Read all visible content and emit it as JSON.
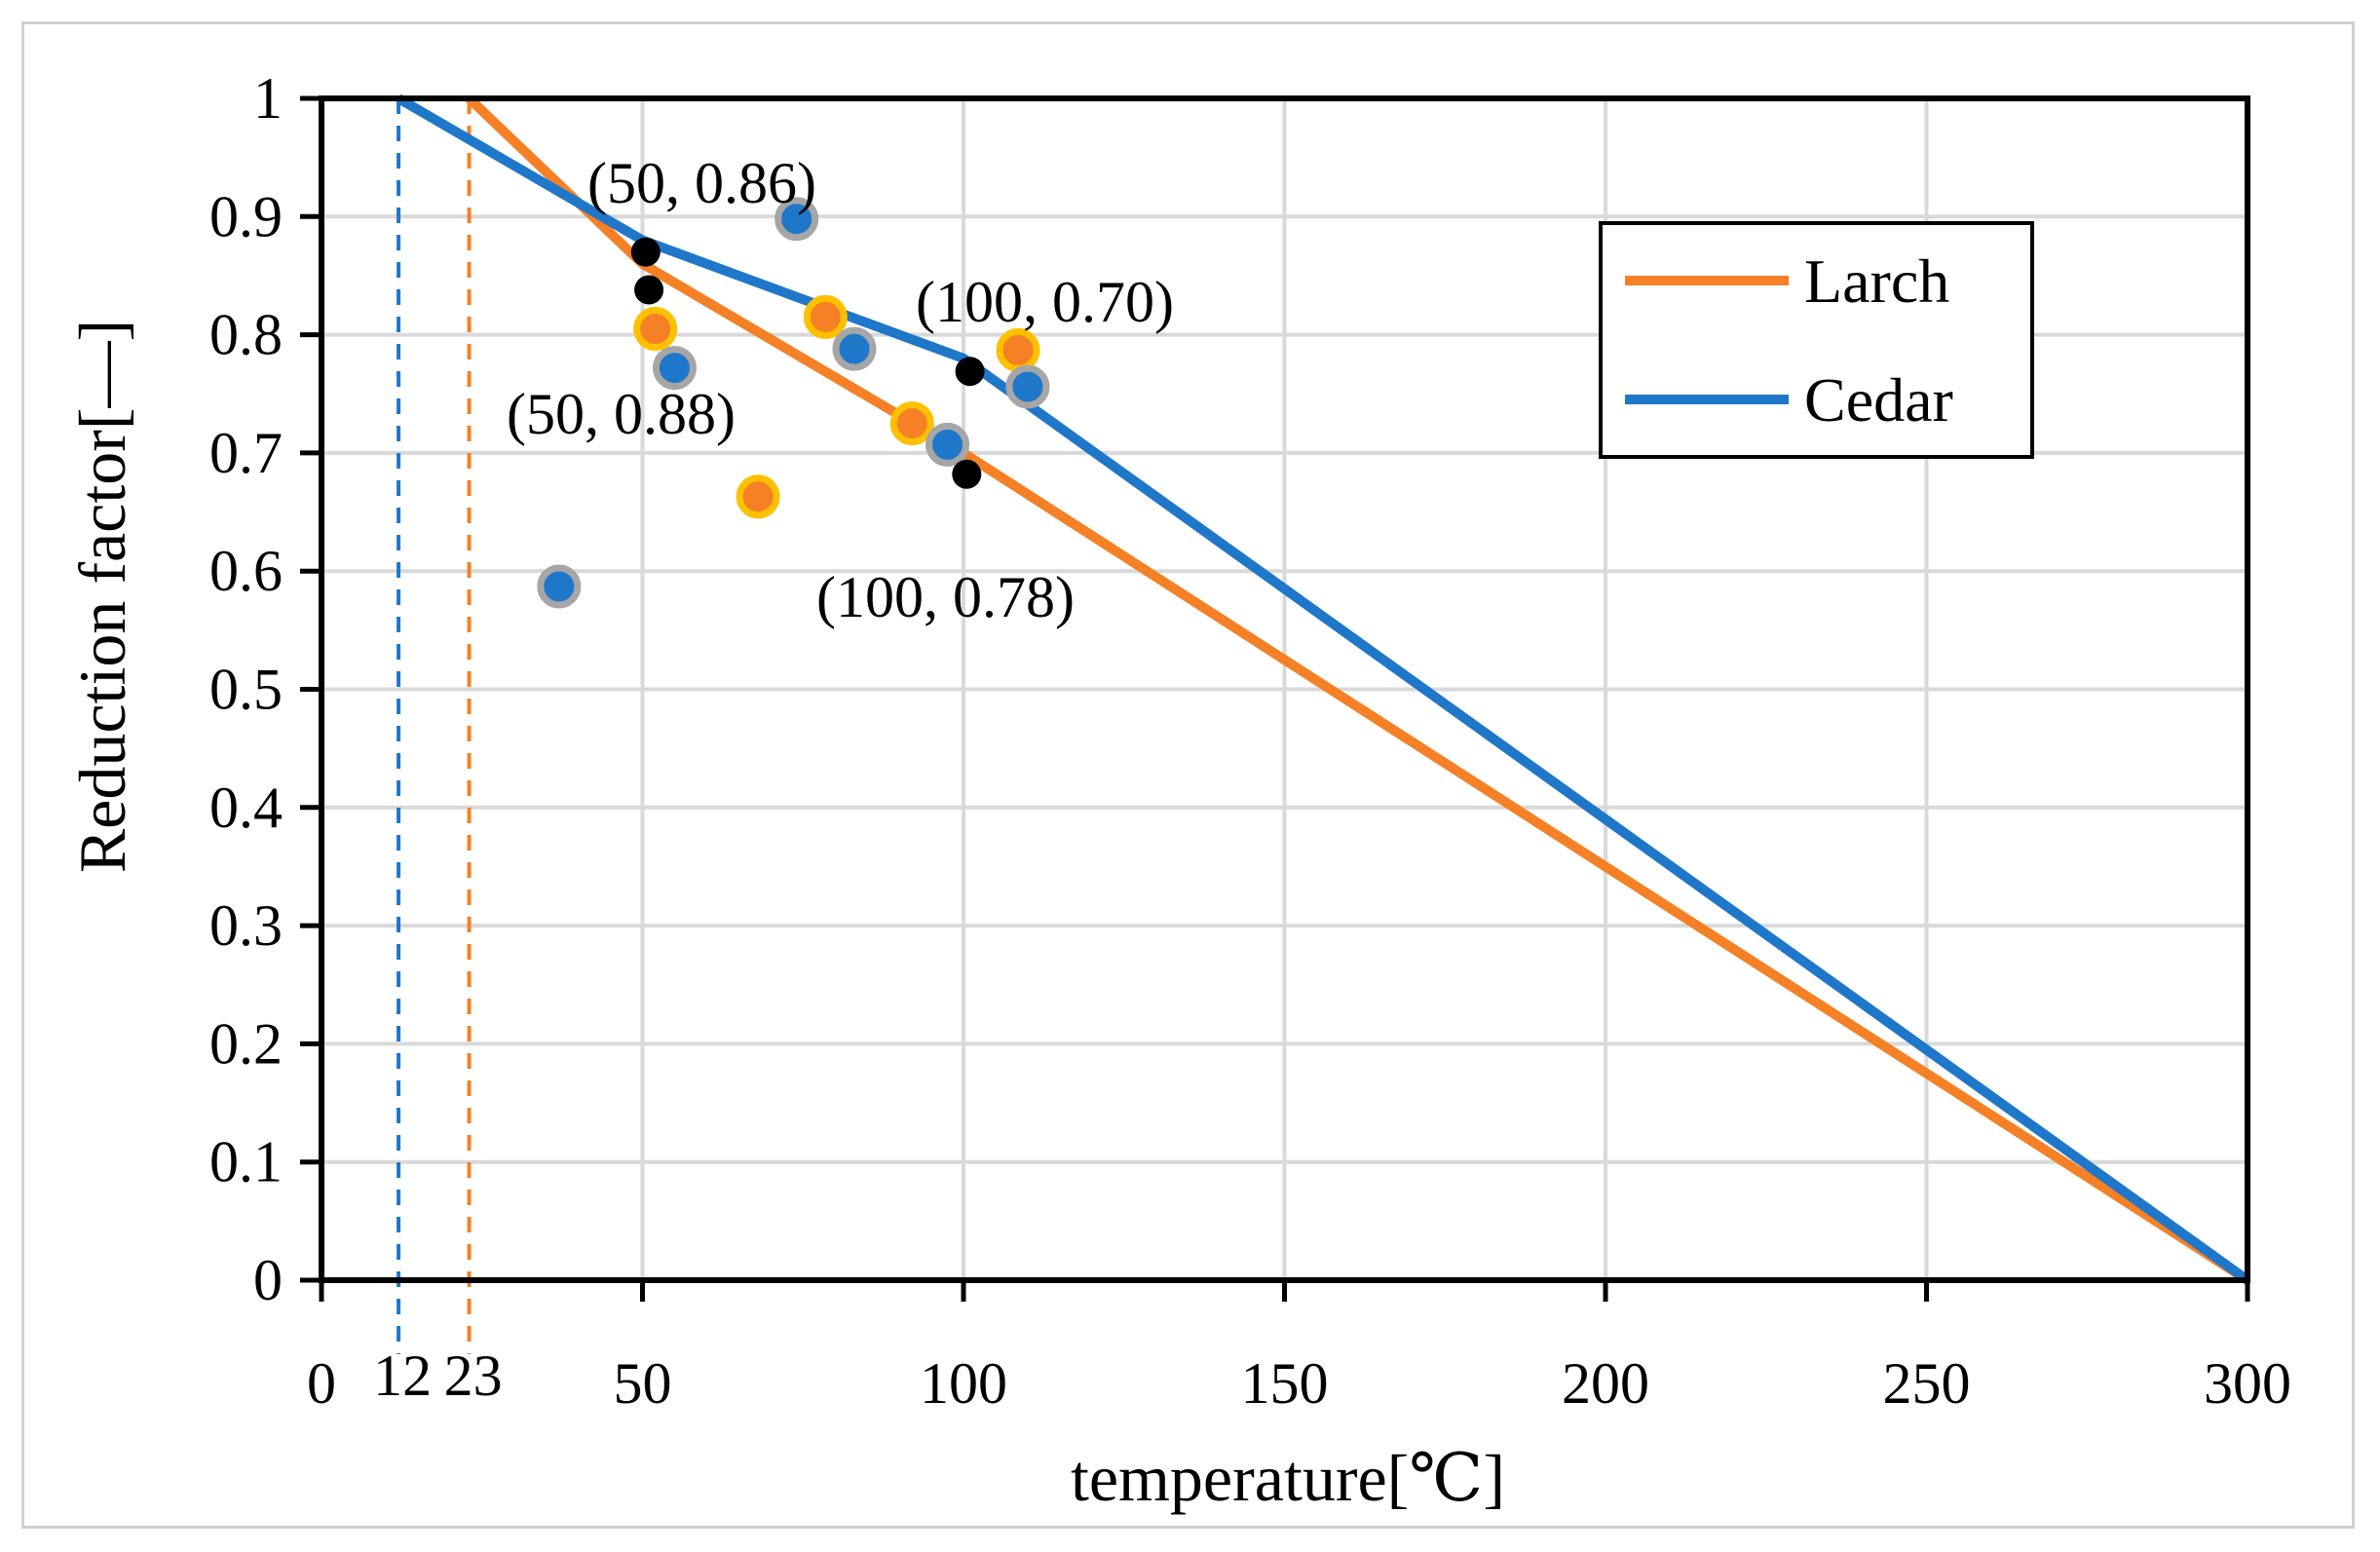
{
  "chart_data": {
    "type": "line",
    "title": "",
    "xlabel": "temperature[℃]",
    "ylabel": "Reduction factor[—]",
    "xlim": [
      0,
      300
    ],
    "ylim": [
      0,
      1
    ],
    "grid": true,
    "x_ticks": [
      "0",
      "50",
      "100",
      "150",
      "200",
      "250",
      "300"
    ],
    "x_tick_values": [
      0,
      50,
      100,
      150,
      200,
      250,
      300
    ],
    "y_ticks": [
      "0",
      "0.1",
      "0.2",
      "0.3",
      "0.4",
      "0.5",
      "0.6",
      "0.7",
      "0.8",
      "0.9",
      "1"
    ],
    "y_tick_values": [
      0,
      0.1,
      0.2,
      0.3,
      0.4,
      0.5,
      0.6,
      0.7,
      0.8,
      0.9,
      1
    ],
    "extra_x_ticks": [
      {
        "label": "12",
        "value": 12,
        "color": "#1f77c9"
      },
      {
        "label": "23",
        "value": 23,
        "color": "#f58025"
      }
    ],
    "legend_position": "top-right",
    "series": [
      {
        "name": "Larch",
        "color": "#f58025",
        "x": [
          23,
          50,
          100,
          300
        ],
        "y": [
          1,
          0.86,
          0.7,
          0
        ]
      },
      {
        "name": "Cedar",
        "color": "#1f77c9",
        "x": [
          12,
          50,
          100,
          300
        ],
        "y": [
          1,
          0.88,
          0.78,
          0
        ]
      }
    ],
    "scatter": [
      {
        "name": "larch-points",
        "fill": "#f58025",
        "edge": "#ffc000",
        "points": [
          [
            52,
            0.805
          ],
          [
            68,
            0.663
          ],
          [
            78.5,
            0.815
          ],
          [
            92,
            0.725
          ],
          [
            108.5,
            0.787
          ]
        ]
      },
      {
        "name": "cedar-points",
        "fill": "#1f77c9",
        "edge": "#a6a6a6",
        "points": [
          [
            37,
            0.587
          ],
          [
            55,
            0.772
          ],
          [
            74,
            0.898
          ],
          [
            83,
            0.788
          ],
          [
            97.5,
            0.707
          ],
          [
            110,
            0.756
          ]
        ]
      },
      {
        "name": "black-points",
        "fill": "#000000",
        "edge": "#000000",
        "points": [
          [
            50.5,
            0.87
          ],
          [
            51,
            0.838
          ],
          [
            101,
            0.769
          ],
          [
            100.5,
            0.682
          ]
        ]
      }
    ],
    "annotations": [
      {
        "text": "(50, 0.86)"
      },
      {
        "text": "(100, 0.70)"
      },
      {
        "text": "(50, 0.88)"
      },
      {
        "text": "(100, 0.78)"
      }
    ]
  }
}
